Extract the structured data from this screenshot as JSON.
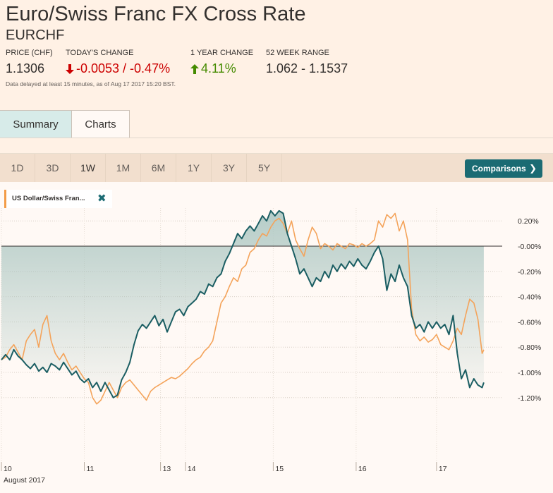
{
  "header": {
    "title": "Euro/Swiss Franc FX Cross Rate",
    "symbol": "EURCHF",
    "labels": {
      "price": "PRICE (CHF)",
      "todays_change": "TODAY'S CHANGE",
      "year_change": "1 YEAR CHANGE",
      "range52": "52 WEEK RANGE"
    },
    "values": {
      "price": "1.1306",
      "todays_change": "-0.0053 / -0.47%",
      "year_change": "4.11%",
      "range52": "1.062 - 1.1537"
    },
    "note": "Data delayed at least 15 minutes, as of Aug 17 2017 15:20 BST."
  },
  "tabs": [
    {
      "label": "Summary",
      "active": true
    },
    {
      "label": "Charts",
      "active": false
    }
  ],
  "ranges": [
    {
      "label": "1D",
      "active": false
    },
    {
      "label": "3D",
      "active": false
    },
    {
      "label": "1W",
      "active": true
    },
    {
      "label": "1M",
      "active": false
    },
    {
      "label": "6M",
      "active": false
    },
    {
      "label": "1Y",
      "active": false
    },
    {
      "label": "3Y",
      "active": false
    },
    {
      "label": "5Y",
      "active": false
    }
  ],
  "comparisons_label": "Comparisons",
  "comparison_chip": "US Dollar/Swiss Fran...",
  "colors": {
    "primary_line": "#1b5e63",
    "comparison_line": "#f4a35a",
    "fill": "#a9c5c0",
    "negative": "#cc0000",
    "positive": "#458b00",
    "accent": "#1b6b73"
  },
  "chart_data": {
    "type": "line",
    "y_unit": "%",
    "ylim": [
      -1.3,
      0.3
    ],
    "y_ticks": [
      0.2,
      0.0,
      -0.2,
      -0.4,
      -0.6,
      -0.8,
      -1.0,
      -1.2
    ],
    "y_tick_labels": [
      "0.20%",
      "-0.00%",
      "-0.20%",
      "-0.40%",
      "-0.60%",
      "-0.80%",
      "-1.00%",
      "-1.20%"
    ],
    "x_tick_labels": [
      "10",
      "11",
      "13",
      "14",
      "15",
      "16",
      "17"
    ],
    "x_tick_positions": [
      0.0,
      1.0,
      1.92,
      2.22,
      3.28,
      4.28,
      5.25
    ],
    "x_sub_label": "August 2017",
    "xlim": [
      0.0,
      6.0
    ],
    "grid": true,
    "series": [
      {
        "name": "Euro/Swiss Franc",
        "fill": true,
        "points": [
          [
            0.0,
            -0.9
          ],
          [
            0.05,
            -0.86
          ],
          [
            0.1,
            -0.9
          ],
          [
            0.15,
            -0.82
          ],
          [
            0.2,
            -0.87
          ],
          [
            0.25,
            -0.9
          ],
          [
            0.3,
            -0.94
          ],
          [
            0.35,
            -0.97
          ],
          [
            0.4,
            -0.93
          ],
          [
            0.45,
            -0.99
          ],
          [
            0.5,
            -0.96
          ],
          [
            0.55,
            -1.0
          ],
          [
            0.6,
            -0.93
          ],
          [
            0.65,
            -0.95
          ],
          [
            0.7,
            -0.98
          ],
          [
            0.75,
            -0.92
          ],
          [
            0.8,
            -0.97
          ],
          [
            0.85,
            -1.02
          ],
          [
            0.9,
            -0.99
          ],
          [
            0.95,
            -1.05
          ],
          [
            1.0,
            -1.08
          ],
          [
            1.05,
            -1.05
          ],
          [
            1.1,
            -1.12
          ],
          [
            1.15,
            -1.08
          ],
          [
            1.2,
            -1.15
          ],
          [
            1.25,
            -1.08
          ],
          [
            1.3,
            -1.14
          ],
          [
            1.35,
            -1.2
          ],
          [
            1.4,
            -1.18
          ],
          [
            1.45,
            -1.06
          ],
          [
            1.5,
            -1.0
          ],
          [
            1.55,
            -0.92
          ],
          [
            1.6,
            -0.78
          ],
          [
            1.65,
            -0.67
          ],
          [
            1.7,
            -0.62
          ],
          [
            1.75,
            -0.65
          ],
          [
            1.8,
            -0.6
          ],
          [
            1.85,
            -0.55
          ],
          [
            1.9,
            -0.63
          ],
          [
            1.95,
            -0.58
          ],
          [
            2.0,
            -0.68
          ],
          [
            2.05,
            -0.6
          ],
          [
            2.1,
            -0.52
          ],
          [
            2.15,
            -0.5
          ],
          [
            2.2,
            -0.55
          ],
          [
            2.25,
            -0.48
          ],
          [
            2.3,
            -0.45
          ],
          [
            2.35,
            -0.42
          ],
          [
            2.4,
            -0.36
          ],
          [
            2.45,
            -0.38
          ],
          [
            2.5,
            -0.3
          ],
          [
            2.55,
            -0.32
          ],
          [
            2.6,
            -0.25
          ],
          [
            2.65,
            -0.22
          ],
          [
            2.7,
            -0.12
          ],
          [
            2.75,
            -0.06
          ],
          [
            2.8,
            0.02
          ],
          [
            2.85,
            0.1
          ],
          [
            2.9,
            0.06
          ],
          [
            2.95,
            0.12
          ],
          [
            3.0,
            0.16
          ],
          [
            3.05,
            0.12
          ],
          [
            3.1,
            0.18
          ],
          [
            3.15,
            0.24
          ],
          [
            3.2,
            0.2
          ],
          [
            3.25,
            0.28
          ],
          [
            3.3,
            0.24
          ],
          [
            3.35,
            0.28
          ],
          [
            3.4,
            0.26
          ],
          [
            3.45,
            0.1
          ],
          [
            3.5,
            0.0
          ],
          [
            3.55,
            -0.1
          ],
          [
            3.6,
            -0.22
          ],
          [
            3.65,
            -0.18
          ],
          [
            3.7,
            -0.25
          ],
          [
            3.75,
            -0.32
          ],
          [
            3.8,
            -0.25
          ],
          [
            3.85,
            -0.28
          ],
          [
            3.9,
            -0.2
          ],
          [
            3.95,
            -0.25
          ],
          [
            4.0,
            -0.15
          ],
          [
            4.05,
            -0.2
          ],
          [
            4.1,
            -0.14
          ],
          [
            4.15,
            -0.18
          ],
          [
            4.2,
            -0.12
          ],
          [
            4.25,
            -0.16
          ],
          [
            4.3,
            -0.1
          ],
          [
            4.35,
            -0.15
          ],
          [
            4.4,
            -0.18
          ],
          [
            4.45,
            -0.12
          ],
          [
            4.5,
            -0.05
          ],
          [
            4.55,
            0.0
          ],
          [
            4.6,
            -0.1
          ],
          [
            4.65,
            -0.35
          ],
          [
            4.7,
            -0.22
          ],
          [
            4.75,
            -0.28
          ],
          [
            4.8,
            -0.15
          ],
          [
            4.85,
            -0.25
          ],
          [
            4.9,
            -0.32
          ],
          [
            4.95,
            -0.55
          ],
          [
            5.0,
            -0.65
          ],
          [
            5.05,
            -0.62
          ],
          [
            5.1,
            -0.68
          ],
          [
            5.15,
            -0.6
          ],
          [
            5.2,
            -0.65
          ],
          [
            5.25,
            -0.6
          ],
          [
            5.3,
            -0.65
          ],
          [
            5.35,
            -0.62
          ],
          [
            5.4,
            -0.7
          ],
          [
            5.45,
            -0.55
          ],
          [
            5.5,
            -0.85
          ],
          [
            5.55,
            -1.05
          ],
          [
            5.6,
            -0.98
          ],
          [
            5.65,
            -1.12
          ],
          [
            5.7,
            -1.05
          ],
          [
            5.75,
            -1.1
          ],
          [
            5.8,
            -1.12
          ],
          [
            5.82,
            -1.08
          ]
        ]
      },
      {
        "name": "US Dollar/Swiss Franc",
        "fill": false,
        "points": [
          [
            0.0,
            -0.9
          ],
          [
            0.05,
            -0.88
          ],
          [
            0.1,
            -0.82
          ],
          [
            0.15,
            -0.78
          ],
          [
            0.2,
            -0.84
          ],
          [
            0.25,
            -0.9
          ],
          [
            0.3,
            -0.75
          ],
          [
            0.35,
            -0.7
          ],
          [
            0.4,
            -0.66
          ],
          [
            0.45,
            -0.8
          ],
          [
            0.5,
            -0.62
          ],
          [
            0.55,
            -0.55
          ],
          [
            0.6,
            -0.75
          ],
          [
            0.65,
            -0.85
          ],
          [
            0.7,
            -0.9
          ],
          [
            0.75,
            -0.85
          ],
          [
            0.8,
            -0.92
          ],
          [
            0.85,
            -0.98
          ],
          [
            0.9,
            -0.95
          ],
          [
            0.95,
            -1.0
          ],
          [
            1.0,
            -1.05
          ],
          [
            1.05,
            -1.08
          ],
          [
            1.1,
            -1.2
          ],
          [
            1.15,
            -1.25
          ],
          [
            1.2,
            -1.22
          ],
          [
            1.25,
            -1.15
          ],
          [
            1.3,
            -1.08
          ],
          [
            1.35,
            -1.14
          ],
          [
            1.4,
            -1.2
          ],
          [
            1.45,
            -1.12
          ],
          [
            1.5,
            -1.08
          ],
          [
            1.55,
            -1.06
          ],
          [
            1.6,
            -1.1
          ],
          [
            1.65,
            -1.14
          ],
          [
            1.7,
            -1.18
          ],
          [
            1.75,
            -1.22
          ],
          [
            1.8,
            -1.15
          ],
          [
            1.85,
            -1.12
          ],
          [
            1.9,
            -1.1
          ],
          [
            1.95,
            -1.08
          ],
          [
            2.0,
            -1.06
          ],
          [
            2.05,
            -1.04
          ],
          [
            2.1,
            -1.05
          ],
          [
            2.15,
            -1.03
          ],
          [
            2.2,
            -1.0
          ],
          [
            2.25,
            -0.97
          ],
          [
            2.3,
            -0.93
          ],
          [
            2.35,
            -0.9
          ],
          [
            2.4,
            -0.88
          ],
          [
            2.45,
            -0.83
          ],
          [
            2.5,
            -0.8
          ],
          [
            2.55,
            -0.75
          ],
          [
            2.6,
            -0.6
          ],
          [
            2.65,
            -0.45
          ],
          [
            2.7,
            -0.4
          ],
          [
            2.75,
            -0.32
          ],
          [
            2.8,
            -0.25
          ],
          [
            2.85,
            -0.28
          ],
          [
            2.9,
            -0.18
          ],
          [
            2.95,
            -0.15
          ],
          [
            3.0,
            -0.05
          ],
          [
            3.05,
            -0.02
          ],
          [
            3.1,
            0.05
          ],
          [
            3.15,
            0.1
          ],
          [
            3.2,
            0.08
          ],
          [
            3.25,
            0.15
          ],
          [
            3.3,
            0.2
          ],
          [
            3.35,
            0.22
          ],
          [
            3.4,
            0.18
          ],
          [
            3.45,
            0.1
          ],
          [
            3.5,
            0.2
          ],
          [
            3.55,
            0.05
          ],
          [
            3.6,
            -0.02
          ],
          [
            3.65,
            -0.08
          ],
          [
            3.7,
            0.05
          ],
          [
            3.75,
            0.15
          ],
          [
            3.8,
            0.1
          ],
          [
            3.85,
            -0.02
          ],
          [
            3.9,
            0.02
          ],
          [
            3.95,
            0.0
          ],
          [
            4.0,
            -0.03
          ],
          [
            4.05,
            0.02
          ],
          [
            4.1,
            0.0
          ],
          [
            4.15,
            -0.02
          ],
          [
            4.2,
            0.02
          ],
          [
            4.25,
            0.01
          ],
          [
            4.3,
            -0.01
          ],
          [
            4.35,
            0.02
          ],
          [
            4.4,
            0.0
          ],
          [
            4.45,
            0.02
          ],
          [
            4.5,
            0.05
          ],
          [
            4.55,
            0.2
          ],
          [
            4.6,
            0.15
          ],
          [
            4.65,
            0.25
          ],
          [
            4.7,
            0.22
          ],
          [
            4.75,
            0.26
          ],
          [
            4.8,
            0.12
          ],
          [
            4.85,
            0.2
          ],
          [
            4.9,
            0.05
          ],
          [
            4.95,
            -0.5
          ],
          [
            5.0,
            -0.7
          ],
          [
            5.05,
            -0.75
          ],
          [
            5.1,
            -0.72
          ],
          [
            5.15,
            -0.76
          ],
          [
            5.2,
            -0.74
          ],
          [
            5.25,
            -0.7
          ],
          [
            5.3,
            -0.78
          ],
          [
            5.35,
            -0.8
          ],
          [
            5.4,
            -0.82
          ],
          [
            5.45,
            -0.75
          ],
          [
            5.5,
            -0.65
          ],
          [
            5.55,
            -0.7
          ],
          [
            5.6,
            -0.55
          ],
          [
            5.65,
            -0.42
          ],
          [
            5.7,
            -0.45
          ],
          [
            5.75,
            -0.58
          ],
          [
            5.8,
            -0.85
          ],
          [
            5.82,
            -0.82
          ]
        ]
      }
    ]
  }
}
